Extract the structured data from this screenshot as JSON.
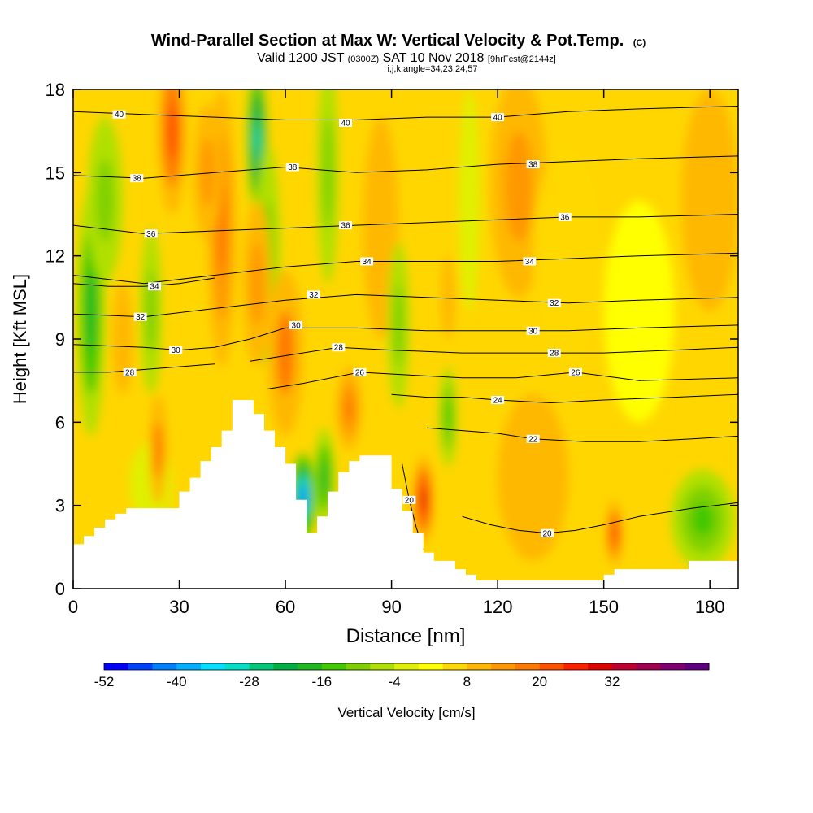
{
  "chart_data": {
    "type": "heatmap",
    "title": "Wind-Parallel Section at Max W: Vertical Velocity & Pot.Temp.",
    "title_mark": "(C)",
    "subtitle": {
      "valid": "Valid 1200 JST",
      "zulu": "(0300Z)",
      "date": "SAT 10 Nov 2018",
      "fcst": "[9hrFcst@2144z]"
    },
    "grid_info": "i,j,k,angle=34,23,24,57",
    "xlabel": "Distance [nm]",
    "ylabel": "Height [Kft MSL]",
    "xlim": [
      0,
      188
    ],
    "ylim": [
      0,
      18
    ],
    "xticks": [
      0,
      30,
      60,
      90,
      120,
      150,
      180
    ],
    "yticks": [
      0,
      3,
      6,
      9,
      12,
      15,
      18
    ],
    "colorbar": {
      "label": "Vertical Velocity [cm/s]",
      "tick_labels": [
        "-52",
        "-40",
        "-28",
        "-16",
        "-4",
        "8",
        "20",
        "32"
      ],
      "colors": [
        "#0000ff",
        "#0040ff",
        "#0080ff",
        "#00b0ff",
        "#00e0ff",
        "#00e0c8",
        "#00c878",
        "#00b040",
        "#20b820",
        "#40c800",
        "#80d000",
        "#b0e000",
        "#e0f000",
        "#ffff00",
        "#ffd800",
        "#ffb800",
        "#ff9800",
        "#ff7800",
        "#ff5000",
        "#ff2000",
        "#e00000",
        "#c00030",
        "#a00050",
        "#800070",
        "#600080"
      ]
    },
    "terrain_profile": {
      "x": [
        0,
        3,
        3,
        6,
        6,
        9,
        9,
        12,
        12,
        15,
        15,
        18,
        18,
        21,
        21,
        24,
        24,
        30,
        30,
        33,
        33,
        36,
        36,
        39,
        39,
        42,
        42,
        45,
        45,
        51,
        51,
        54,
        54,
        57,
        57,
        60,
        60,
        63,
        63,
        66,
        66,
        69,
        69,
        72,
        72,
        75,
        75,
        78,
        78,
        81,
        81,
        90,
        90,
        93,
        93,
        96,
        96,
        99,
        99,
        102,
        102,
        108,
        108,
        111,
        111,
        114,
        114,
        117,
        117,
        132,
        132,
        150,
        150,
        153,
        153,
        156,
        156,
        162,
        162,
        174,
        174,
        177,
        177,
        188
      ],
      "height_kft": [
        1.6,
        1.6,
        1.9,
        1.9,
        2.2,
        2.2,
        2.5,
        2.5,
        2.7,
        2.7,
        2.9,
        2.9,
        2.9,
        2.9,
        2.9,
        2.9,
        2.9,
        2.9,
        3.5,
        3.5,
        4.0,
        4.0,
        4.6,
        4.6,
        5.1,
        5.1,
        5.7,
        5.7,
        6.8,
        6.8,
        6.3,
        6.3,
        5.7,
        5.7,
        5.1,
        5.1,
        4.5,
        4.5,
        3.2,
        3.2,
        2.0,
        2.0,
        2.6,
        2.6,
        3.5,
        3.5,
        4.2,
        4.2,
        4.6,
        4.6,
        4.8,
        4.8,
        3.6,
        3.6,
        2.8,
        2.8,
        2.0,
        2.0,
        1.3,
        1.3,
        1.0,
        1.0,
        0.7,
        0.7,
        0.5,
        0.5,
        0.3,
        0.3,
        0.3,
        0.3,
        0.3,
        0.3,
        0.5,
        0.5,
        0.7,
        0.7,
        0.7,
        0.7,
        0.7,
        0.7,
        1.0,
        1.0,
        1.0,
        1.0
      ]
    },
    "vertical_velocity_cells": [
      {
        "x": 22,
        "y": 3.8,
        "w": -4,
        "rx": 6,
        "ry": 1.5
      },
      {
        "x": 5,
        "y": 10,
        "w": -20,
        "rx": 4,
        "ry": 4.5
      },
      {
        "x": 9,
        "y": 14,
        "w": -14,
        "rx": 5,
        "ry": 3
      },
      {
        "x": 22,
        "y": 10,
        "w": -14,
        "rx": 3,
        "ry": 3
      },
      {
        "x": 28,
        "y": 16.5,
        "w": 20,
        "rx": 4,
        "ry": 3
      },
      {
        "x": 42,
        "y": 13,
        "w": 16,
        "rx": 4,
        "ry": 5
      },
      {
        "x": 38,
        "y": 15,
        "w": 12,
        "rx": 4,
        "ry": 2.5
      },
      {
        "x": 24,
        "y": 5,
        "w": 14,
        "rx": 2.5,
        "ry": 2
      },
      {
        "x": 52,
        "y": 16.2,
        "w": -34,
        "rx": 3,
        "ry": 2.8
      },
      {
        "x": 55,
        "y": 12,
        "w": -12,
        "rx": 3.5,
        "ry": 4
      },
      {
        "x": 52,
        "y": 11,
        "w": 10,
        "rx": 4,
        "ry": 3
      },
      {
        "x": 60,
        "y": 8.5,
        "w": 14,
        "rx": 5,
        "ry": 3
      },
      {
        "x": 65,
        "y": 3.3,
        "w": -45,
        "rx": 3.5,
        "ry": 1.6
      },
      {
        "x": 71,
        "y": 4,
        "w": -20,
        "rx": 3,
        "ry": 1.8
      },
      {
        "x": 72,
        "y": 15,
        "w": -14,
        "rx": 3,
        "ry": 4
      },
      {
        "x": 78,
        "y": 6.5,
        "w": 16,
        "rx": 3.5,
        "ry": 1.5
      },
      {
        "x": 87,
        "y": 13,
        "w": 8,
        "rx": 5,
        "ry": 4
      },
      {
        "x": 92,
        "y": 9.5,
        "w": -12,
        "rx": 3,
        "ry": 3
      },
      {
        "x": 99,
        "y": 3.2,
        "w": 26,
        "rx": 3,
        "ry": 1.6
      },
      {
        "x": 106,
        "y": 6.2,
        "w": -18,
        "rx": 2.5,
        "ry": 1.8
      },
      {
        "x": 106,
        "y": 10.5,
        "w": 8,
        "rx": 2,
        "ry": 1.5
      },
      {
        "x": 112,
        "y": 14,
        "w": -6,
        "rx": 3,
        "ry": 4
      },
      {
        "x": 126,
        "y": 14.5,
        "w": 10,
        "rx": 8,
        "ry": 4
      },
      {
        "x": 140,
        "y": 12,
        "w": 4,
        "rx": 10,
        "ry": 4
      },
      {
        "x": 153,
        "y": 2,
        "w": 20,
        "rx": 2.5,
        "ry": 1.2
      },
      {
        "x": 178,
        "y": 2.5,
        "w": -18,
        "rx": 9,
        "ry": 1.8
      },
      {
        "x": 160,
        "y": 10,
        "w": -2,
        "rx": 10,
        "ry": 4
      },
      {
        "x": 180,
        "y": 14,
        "w": 8,
        "rx": 8,
        "ry": 4
      },
      {
        "x": 130,
        "y": 4,
        "w": 6,
        "rx": 10,
        "ry": 3
      },
      {
        "x": 14,
        "y": 9,
        "w": 6,
        "rx": 3,
        "ry": 2
      }
    ],
    "potential_temperature_contours": [
      {
        "label": "40",
        "label_at": [
          [
            13,
            17.1
          ],
          [
            77,
            16.8
          ],
          [
            120,
            17.0
          ]
        ],
        "x": [
          0,
          20,
          40,
          60,
          80,
          100,
          120,
          140,
          160,
          188
        ],
        "y": [
          17.2,
          17.1,
          17.0,
          16.9,
          16.9,
          17.0,
          17.0,
          17.2,
          17.3,
          17.4
        ]
      },
      {
        "label": "38",
        "label_at": [
          [
            18,
            14.8
          ],
          [
            62,
            15.2
          ],
          [
            130,
            15.3
          ]
        ],
        "x": [
          0,
          20,
          40,
          60,
          80,
          100,
          120,
          140,
          160,
          188
        ],
        "y": [
          14.9,
          14.8,
          15.0,
          15.2,
          15.0,
          15.1,
          15.3,
          15.4,
          15.5,
          15.6
        ]
      },
      {
        "label": "36",
        "label_at": [
          [
            22,
            12.8
          ],
          [
            77,
            13.1
          ],
          [
            139,
            13.4
          ]
        ],
        "x": [
          0,
          20,
          40,
          60,
          80,
          100,
          120,
          140,
          160,
          188
        ],
        "y": [
          13.1,
          12.8,
          12.9,
          13.0,
          13.1,
          13.2,
          13.3,
          13.4,
          13.4,
          13.5
        ]
      },
      {
        "label": "34",
        "label_at": [
          [
            83,
            11.8
          ],
          [
            129,
            11.8
          ]
        ],
        "x": [
          0,
          20,
          40,
          60,
          80,
          100,
          120,
          140,
          160,
          188
        ],
        "y": [
          11.3,
          11.0,
          11.3,
          11.6,
          11.8,
          11.8,
          11.8,
          11.9,
          12.0,
          12.1
        ]
      },
      {
        "label": "34",
        "label_at": [
          [
            23,
            10.9
          ]
        ],
        "x": [
          0,
          10,
          20,
          30,
          40
        ],
        "y": [
          11.0,
          10.9,
          10.9,
          11.0,
          11.2
        ]
      },
      {
        "label": "32",
        "label_at": [
          [
            19,
            9.8
          ],
          [
            68,
            10.6
          ],
          [
            136,
            10.3
          ]
        ],
        "x": [
          0,
          20,
          40,
          60,
          80,
          100,
          120,
          140,
          160,
          188
        ],
        "y": [
          9.9,
          9.8,
          10.1,
          10.4,
          10.6,
          10.5,
          10.4,
          10.3,
          10.4,
          10.5
        ]
      },
      {
        "label": "30",
        "label_at": [
          [
            29,
            8.6
          ],
          [
            63,
            9.5
          ],
          [
            130,
            9.3
          ]
        ],
        "x": [
          0,
          20,
          30,
          40,
          50,
          60,
          80,
          100,
          120,
          140,
          160,
          188
        ],
        "y": [
          8.8,
          8.7,
          8.6,
          8.7,
          9.0,
          9.4,
          9.4,
          9.3,
          9.3,
          9.3,
          9.4,
          9.5
        ]
      },
      {
        "label": "28",
        "label_at": [
          [
            75,
            8.7
          ],
          [
            136,
            8.5
          ]
        ],
        "x": [
          50,
          60,
          75,
          90,
          110,
          130,
          150,
          170,
          188
        ],
        "y": [
          8.2,
          8.4,
          8.7,
          8.6,
          8.5,
          8.5,
          8.5,
          8.6,
          8.7
        ]
      },
      {
        "label": "28",
        "label_at": [
          [
            16,
            7.8
          ]
        ],
        "x": [
          0,
          10,
          20,
          30,
          40
        ],
        "y": [
          7.8,
          7.8,
          7.9,
          8.0,
          8.1
        ]
      },
      {
        "label": "26",
        "label_at": [
          [
            81,
            7.8
          ],
          [
            142,
            7.8
          ]
        ],
        "x": [
          55,
          65,
          81,
          95,
          110,
          125,
          142,
          160,
          188
        ],
        "y": [
          7.2,
          7.4,
          7.8,
          7.7,
          7.6,
          7.6,
          7.8,
          7.5,
          7.6
        ]
      },
      {
        "label": "24",
        "label_at": [
          [
            120,
            6.8
          ]
        ],
        "x": [
          90,
          100,
          110,
          120,
          135,
          150,
          170,
          188
        ],
        "y": [
          7.0,
          6.9,
          6.9,
          6.8,
          6.7,
          6.8,
          6.9,
          7.0
        ]
      },
      {
        "label": "22",
        "label_at": [
          [
            130,
            5.4
          ]
        ],
        "x": [
          100,
          110,
          120,
          130,
          145,
          160,
          175,
          188
        ],
        "y": [
          5.8,
          5.7,
          5.6,
          5.4,
          5.3,
          5.3,
          5.4,
          5.5
        ]
      },
      {
        "label": "20",
        "label_at": [
          [
            134,
            2.0
          ]
        ],
        "x": [
          110,
          118,
          126,
          134,
          142,
          150,
          160,
          175,
          188
        ],
        "y": [
          2.6,
          2.3,
          2.1,
          2.0,
          2.1,
          2.3,
          2.6,
          2.9,
          3.1
        ]
      },
      {
        "label": "20",
        "label_at": [
          [
            95,
            3.2
          ]
        ],
        "x": [
          93,
          95,
          97,
          99
        ],
        "y": [
          4.5,
          3.2,
          2.2,
          1.4
        ]
      }
    ]
  }
}
